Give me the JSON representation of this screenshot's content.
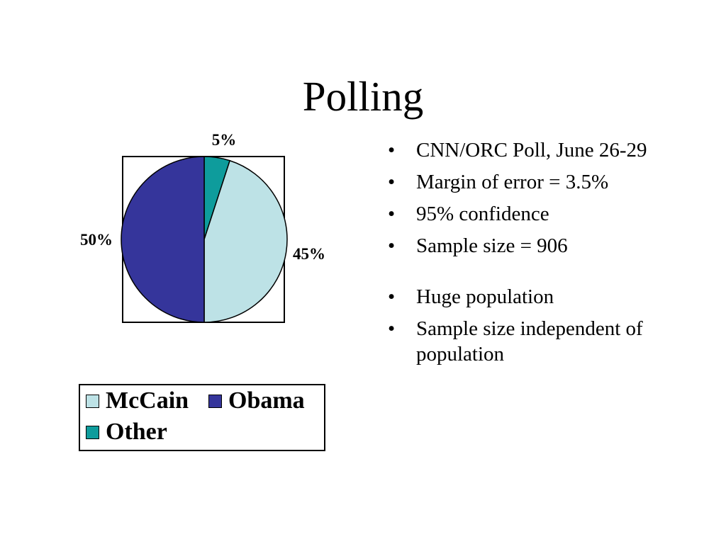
{
  "slide": {
    "title": "Polling"
  },
  "bullets": [
    "CNN/ORC Poll, June 26-29",
    "Margin of error = 3.5%",
    "95% confidence",
    "Sample size = 906",
    "Huge population",
    "Sample size independent of population"
  ],
  "bullet_glyph": "•",
  "chart_data": {
    "type": "pie",
    "categories": [
      "McCain",
      "Obama",
      "Other"
    ],
    "values": [
      45,
      50,
      5
    ],
    "data_labels": [
      "45%",
      "50%",
      "5%"
    ],
    "colors": [
      "#BDE2E6",
      "#35359B",
      "#0E9C9C"
    ],
    "legend_position": "bottom"
  }
}
